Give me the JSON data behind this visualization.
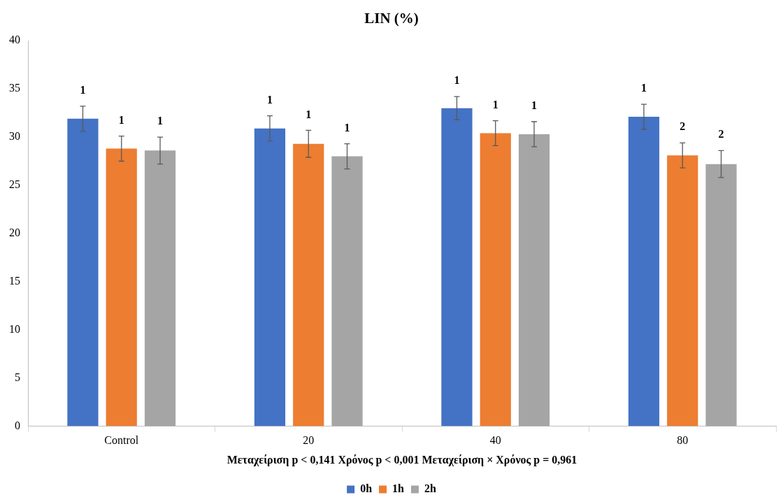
{
  "chart_data": {
    "type": "bar",
    "title": "LIN (%)",
    "xlabel": "Μεταχείριση p < 0,141 Χρόνος p < 0,001 Μεταχείριση × Χρόνος p = 0,961",
    "categories": [
      "Control",
      "20",
      "40",
      "80"
    ],
    "series": [
      {
        "name": "0h",
        "color": "#4472c4",
        "values": [
          31.9,
          30.9,
          33.0,
          32.1
        ],
        "errors": [
          1.3,
          1.3,
          1.2,
          1.3
        ]
      },
      {
        "name": "1h",
        "color": "#ed7d31",
        "values": [
          28.8,
          29.3,
          30.4,
          28.1
        ],
        "errors": [
          1.3,
          1.4,
          1.3,
          1.3
        ]
      },
      {
        "name": "2h",
        "color": "#a5a5a5",
        "values": [
          28.6,
          28.0,
          30.3,
          27.2
        ],
        "errors": [
          1.4,
          1.3,
          1.3,
          1.4
        ]
      }
    ],
    "annotations": [
      "1",
      "1",
      "1",
      "1",
      "1",
      "1",
      "1",
      "1",
      "1",
      "1",
      "2",
      "2"
    ],
    "ylim": [
      0,
      40
    ],
    "yticks": [
      0,
      5,
      10,
      15,
      20,
      25,
      30,
      35,
      40
    ],
    "grid": false,
    "legend": "bottom"
  }
}
